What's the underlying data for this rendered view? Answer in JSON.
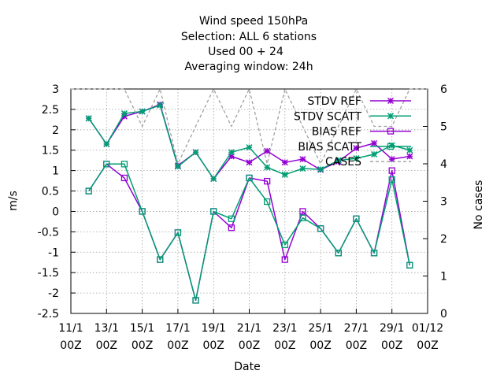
{
  "chart_data": {
    "type": "line",
    "title_lines": [
      "Wind speed 150hPa",
      "Selection: ALL      6 stations",
      "Used  00 + 24",
      "Averaging window: 24h"
    ],
    "xlabel": "Date",
    "ylabel": "m/s",
    "y2label": "No cases",
    "xlim": [
      0,
      20
    ],
    "ylim": [
      -2.5,
      3
    ],
    "y2lim": [
      0,
      6
    ],
    "grid": true,
    "legend_position": "top-right",
    "x_ticks": [
      {
        "x": 0,
        "line1": "11/1",
        "line2": "00Z"
      },
      {
        "x": 2,
        "line1": "13/1",
        "line2": "00Z"
      },
      {
        "x": 4,
        "line1": "15/1",
        "line2": "00Z"
      },
      {
        "x": 6,
        "line1": "17/1",
        "line2": "00Z"
      },
      {
        "x": 8,
        "line1": "19/1",
        "line2": "00Z"
      },
      {
        "x": 10,
        "line1": "21/1",
        "line2": "00Z"
      },
      {
        "x": 12,
        "line1": "23/1",
        "line2": "00Z"
      },
      {
        "x": 14,
        "line1": "25/1",
        "line2": "00Z"
      },
      {
        "x": 16,
        "line1": "27/1",
        "line2": "00Z"
      },
      {
        "x": 18,
        "line1": "29/1",
        "line2": "00Z"
      },
      {
        "x": 20,
        "line1": "01/12",
        "line2": "00Z"
      }
    ],
    "y_ticks": [
      "-2.5",
      "-2",
      "-1.5",
      "-1",
      "-0.5",
      "0",
      "0.5",
      "1",
      "1.5",
      "2",
      "2.5",
      "3"
    ],
    "y2_ticks": [
      "0",
      "1",
      "2",
      "3",
      "4",
      "5",
      "6"
    ],
    "series": [
      {
        "name": "STDV REF",
        "color": "#9400d3",
        "marker": "star",
        "axis": "y",
        "x": [
          1,
          2,
          3,
          4,
          5,
          6,
          7,
          8,
          9,
          10,
          11,
          12,
          13,
          14,
          15,
          16,
          17,
          18,
          19
        ],
        "y": [
          2.28,
          1.65,
          2.33,
          2.45,
          2.62,
          1.12,
          1.45,
          0.8,
          1.35,
          1.2,
          1.48,
          1.2,
          1.28,
          1.02,
          1.22,
          1.55,
          1.67,
          1.28,
          1.35
        ]
      },
      {
        "name": "STDV SCATT",
        "color": "#009e73",
        "marker": "star",
        "axis": "y",
        "x": [
          1,
          2,
          3,
          4,
          5,
          6,
          7,
          8,
          9,
          10,
          11,
          12,
          13,
          14,
          15,
          16,
          17,
          18,
          19
        ],
        "y": [
          2.28,
          1.65,
          2.4,
          2.45,
          2.6,
          1.1,
          1.45,
          0.8,
          1.45,
          1.57,
          1.08,
          0.9,
          1.05,
          1.03,
          1.25,
          1.3,
          1.4,
          1.62,
          1.5
        ]
      },
      {
        "name": "BIAS REF",
        "color": "#9400d3",
        "marker": "square",
        "axis": "y",
        "x": [
          1,
          2,
          3,
          4,
          5,
          6,
          7,
          8,
          9,
          10,
          11,
          12,
          13,
          14,
          15,
          16,
          17,
          18,
          19
        ],
        "y": [
          0.5,
          1.16,
          0.82,
          0,
          -1.18,
          -0.52,
          -2.18,
          0,
          -0.4,
          0.82,
          0.74,
          -1.18,
          0,
          -0.42,
          -1.02,
          -0.18,
          -1.02,
          1.0,
          -1.32
        ]
      },
      {
        "name": "BIAS SCATT",
        "color": "#009e73",
        "marker": "square",
        "axis": "y",
        "x": [
          1,
          2,
          3,
          4,
          5,
          6,
          7,
          8,
          9,
          10,
          11,
          12,
          13,
          14,
          15,
          16,
          17,
          18,
          19
        ],
        "y": [
          0.5,
          1.16,
          1.16,
          0,
          -1.18,
          -0.52,
          -2.18,
          0,
          -0.18,
          0.82,
          0.24,
          -0.82,
          -0.16,
          -0.42,
          -1.02,
          -0.18,
          -1.02,
          0.78,
          -1.32
        ]
      },
      {
        "name": "CASES",
        "color": "#a0a0a0",
        "marker": "none",
        "dash": true,
        "axis": "y2",
        "x": [
          0,
          1,
          2,
          3,
          4,
          5,
          6,
          7,
          8,
          9,
          10,
          11,
          12,
          13,
          14,
          15,
          16,
          17,
          18,
          19,
          20
        ],
        "y": [
          6,
          6,
          6,
          6,
          5,
          6,
          4,
          5,
          6,
          5,
          6,
          4,
          6,
          5,
          4,
          5,
          6,
          5,
          5,
          6,
          6
        ]
      }
    ]
  }
}
